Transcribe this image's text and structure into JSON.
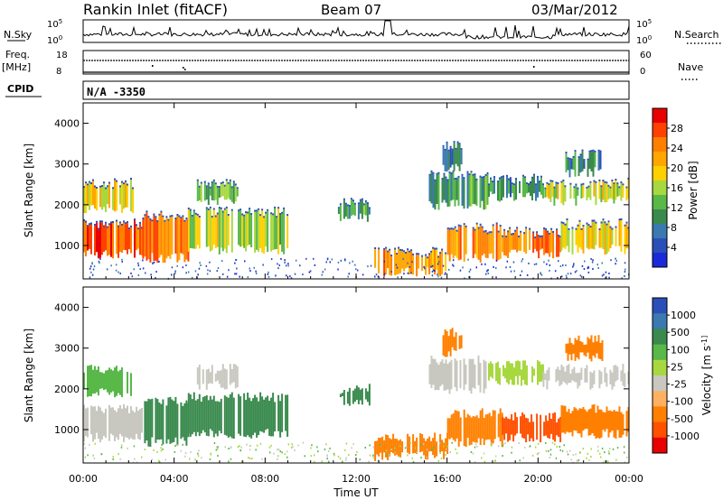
{
  "header": {
    "title": "Rankin Inlet (fitACF)",
    "beam": "Beam 07",
    "date": "03/Mar/2012"
  },
  "noise_panel": {
    "left_label": "N.Sky",
    "right_label": "N.Search",
    "left_ticks": [
      "10^5",
      "10^0"
    ],
    "right_ticks": [
      "10^5",
      "10^0"
    ]
  },
  "freq_panel": {
    "left_label_1": "Freq.",
    "left_label_2": "[MHz]",
    "right_label": "Nave",
    "left_ticks": [
      "18",
      "8"
    ],
    "right_ticks": [
      "60",
      "0"
    ]
  },
  "cpid_panel": {
    "label": "CPID",
    "value": "N/A  -3350"
  },
  "chart_data": [
    {
      "type": "heatmap",
      "ylabel": "Slant Range [km]",
      "yticks": [
        "4000",
        "3000",
        "2000",
        "1000"
      ],
      "ylim": [
        180,
        4500
      ],
      "colorbar_label": "Power [dB]",
      "colorbar_ticks": [
        "28",
        "24",
        "20",
        "16",
        "12",
        "8",
        "4"
      ],
      "colorbar_colors": [
        "#e80000",
        "#ff4000",
        "#ff8000",
        "#ffa600",
        "#ffd000",
        "#a8d840",
        "#58b848",
        "#3a8a4e",
        "#3a7ab0",
        "#2a4fb8",
        "#1a2ad8"
      ],
      "bands": [
        {
          "t0": 0.0,
          "t1": 2.6,
          "r0": 800,
          "r1": 1500,
          "v": 26
        },
        {
          "t0": 0.0,
          "t1": 2.2,
          "r0": 1900,
          "r1": 2500,
          "v": 18
        },
        {
          "t0": 2.6,
          "t1": 4.6,
          "r0": 700,
          "r1": 1700,
          "v": 24
        },
        {
          "t0": 4.6,
          "t1": 6.6,
          "r0": 900,
          "r1": 1800,
          "v": 16
        },
        {
          "t0": 5.0,
          "t1": 6.8,
          "r0": 2100,
          "r1": 2500,
          "v": 12
        },
        {
          "t0": 6.8,
          "t1": 9.0,
          "r0": 900,
          "r1": 1800,
          "v": 14
        },
        {
          "t0": 11.2,
          "t1": 12.6,
          "r0": 1700,
          "r1": 2000,
          "v": 10
        },
        {
          "t0": 12.8,
          "t1": 16.0,
          "r0": 350,
          "r1": 800,
          "v": 22
        },
        {
          "t0": 16.0,
          "t1": 18.4,
          "r0": 700,
          "r1": 1400,
          "v": 22
        },
        {
          "t0": 18.4,
          "t1": 21.0,
          "r0": 800,
          "r1": 1300,
          "v": 24
        },
        {
          "t0": 21.0,
          "t1": 24.0,
          "r0": 900,
          "r1": 1500,
          "v": 18
        },
        {
          "t0": 15.2,
          "t1": 17.8,
          "r0": 2000,
          "r1": 2700,
          "v": 10
        },
        {
          "t0": 17.8,
          "t1": 20.2,
          "r0": 2200,
          "r1": 2600,
          "v": 8
        },
        {
          "t0": 20.2,
          "t1": 24.0,
          "r0": 2100,
          "r1": 2500,
          "v": 16
        },
        {
          "t0": 21.2,
          "t1": 22.8,
          "r0": 2800,
          "r1": 3200,
          "v": 8
        },
        {
          "t0": 15.8,
          "t1": 16.6,
          "r0": 2900,
          "r1": 3400,
          "v": 6
        }
      ]
    },
    {
      "type": "heatmap",
      "ylabel": "Slant Range [km]",
      "yticks": [
        "4000",
        "3000",
        "2000",
        "1000"
      ],
      "ylim": [
        180,
        4500
      ],
      "colorbar_label": "Velocity [m s^-1]",
      "colorbar_ticks": [
        "1000",
        "500",
        "100",
        "25",
        "-25",
        "-100",
        "-500",
        "-1000"
      ],
      "colorbar_colors": [
        "#2a4fb8",
        "#3a7ab0",
        "#3a8a4e",
        "#58b848",
        "#a8d840",
        "#c8c8c0",
        "#ffb060",
        "#ff8000",
        "#ff5000",
        "#e80000"
      ],
      "bands": [
        {
          "t0": 0.0,
          "t1": 2.6,
          "r0": 800,
          "r1": 1500,
          "v": 5
        },
        {
          "t0": 0.0,
          "t1": 2.2,
          "r0": 1900,
          "r1": 2500,
          "v": 3
        },
        {
          "t0": 2.6,
          "t1": 4.6,
          "r0": 700,
          "r1": 1700,
          "v": 2
        },
        {
          "t0": 4.6,
          "t1": 6.6,
          "r0": 900,
          "r1": 1800,
          "v": 2
        },
        {
          "t0": 5.0,
          "t1": 6.8,
          "r0": 2100,
          "r1": 2500,
          "v": 5
        },
        {
          "t0": 6.8,
          "t1": 9.0,
          "r0": 900,
          "r1": 1800,
          "v": 2
        },
        {
          "t0": 11.2,
          "t1": 12.6,
          "r0": 1700,
          "r1": 2000,
          "v": 2
        },
        {
          "t0": 12.8,
          "t1": 16.0,
          "r0": 350,
          "r1": 800,
          "v": 7
        },
        {
          "t0": 16.0,
          "t1": 18.4,
          "r0": 700,
          "r1": 1400,
          "v": 7
        },
        {
          "t0": 18.4,
          "t1": 21.0,
          "r0": 800,
          "r1": 1300,
          "v": 8
        },
        {
          "t0": 21.0,
          "t1": 24.0,
          "r0": 900,
          "r1": 1500,
          "v": 7
        },
        {
          "t0": 15.2,
          "t1": 17.8,
          "r0": 2000,
          "r1": 2700,
          "v": 5
        },
        {
          "t0": 17.8,
          "t1": 20.2,
          "r0": 2200,
          "r1": 2600,
          "v": 4
        },
        {
          "t0": 20.2,
          "t1": 24.0,
          "r0": 2100,
          "r1": 2500,
          "v": 5
        },
        {
          "t0": 21.2,
          "t1": 22.8,
          "r0": 2800,
          "r1": 3200,
          "v": 7
        },
        {
          "t0": 15.8,
          "t1": 16.6,
          "r0": 2900,
          "r1": 3400,
          "v": 7
        }
      ]
    }
  ],
  "xaxis": {
    "label": "Time UT",
    "ticks": [
      "00:00",
      "04:00",
      "08:00",
      "12:00",
      "16:00",
      "20:00",
      "00:00"
    ]
  }
}
